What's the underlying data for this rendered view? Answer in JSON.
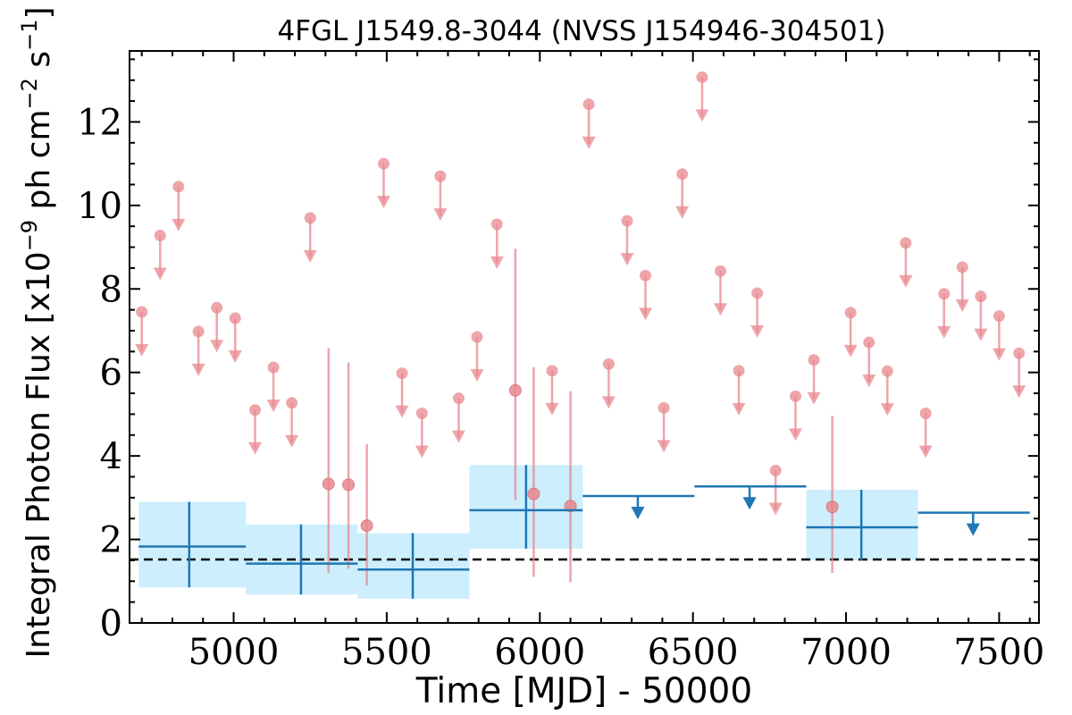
{
  "chart_data": {
    "type": "scatter",
    "title": "4FGL J1549.8-3044 (NVSS J154946-304501)",
    "xlabel": "Time [MJD] - 50000",
    "ylabel_main": "Integral Photon Flux [x10",
    "ylabel_exp1": "−9",
    "ylabel_mid": " ph cm",
    "ylabel_exp2": "−2",
    "ylabel_mid2": " s",
    "ylabel_exp3": "−1",
    "ylabel_end": "]",
    "xlim": [
      4660,
      7630
    ],
    "ylim": [
      0,
      13.7
    ],
    "xticks": [
      5000,
      5500,
      6000,
      6500,
      7000,
      7500
    ],
    "yticks": [
      0,
      2,
      4,
      6,
      8,
      10,
      12
    ],
    "xtick_labels": [
      "5000",
      "5500",
      "6000",
      "6500",
      "7000",
      "7500"
    ],
    "ytick_labels": [
      "0",
      "2",
      "4",
      "6",
      "8",
      "10",
      "12"
    ],
    "grid": false,
    "colors": {
      "short_bins": "#e8888f",
      "long_bins": "#1f77b4",
      "long_bin_band": "#cdeefc",
      "mean_line": "#000000"
    },
    "mean_flux": 1.52,
    "short_bins_upper_limits": [
      {
        "x": 4700,
        "y": 7.45
      },
      {
        "x": 4760,
        "y": 9.28
      },
      {
        "x": 4820,
        "y": 10.45
      },
      {
        "x": 4885,
        "y": 6.98
      },
      {
        "x": 4945,
        "y": 7.55
      },
      {
        "x": 5005,
        "y": 7.3
      },
      {
        "x": 5070,
        "y": 5.1
      },
      {
        "x": 5130,
        "y": 6.12
      },
      {
        "x": 5190,
        "y": 5.27
      },
      {
        "x": 5250,
        "y": 9.7
      },
      {
        "x": 5490,
        "y": 11.0
      },
      {
        "x": 5550,
        "y": 5.98
      },
      {
        "x": 5615,
        "y": 5.02
      },
      {
        "x": 5675,
        "y": 10.7
      },
      {
        "x": 5735,
        "y": 5.38
      },
      {
        "x": 5795,
        "y": 6.85
      },
      {
        "x": 5860,
        "y": 9.55
      },
      {
        "x": 6040,
        "y": 6.04
      },
      {
        "x": 6160,
        "y": 12.42
      },
      {
        "x": 6225,
        "y": 6.2
      },
      {
        "x": 6285,
        "y": 9.63
      },
      {
        "x": 6345,
        "y": 8.32
      },
      {
        "x": 6405,
        "y": 5.15
      },
      {
        "x": 6465,
        "y": 10.75
      },
      {
        "x": 6530,
        "y": 13.07
      },
      {
        "x": 6590,
        "y": 8.43
      },
      {
        "x": 6650,
        "y": 6.04
      },
      {
        "x": 6710,
        "y": 7.9
      },
      {
        "x": 6770,
        "y": 3.65
      },
      {
        "x": 6835,
        "y": 5.43
      },
      {
        "x": 6895,
        "y": 6.3
      },
      {
        "x": 7015,
        "y": 7.43
      },
      {
        "x": 7075,
        "y": 6.72
      },
      {
        "x": 7135,
        "y": 6.03
      },
      {
        "x": 7195,
        "y": 9.1
      },
      {
        "x": 7260,
        "y": 5.02
      },
      {
        "x": 7320,
        "y": 7.88
      },
      {
        "x": 7380,
        "y": 8.52
      },
      {
        "x": 7440,
        "y": 7.82
      },
      {
        "x": 7500,
        "y": 7.35
      },
      {
        "x": 7565,
        "y": 6.46
      }
    ],
    "short_bins_detections": [
      {
        "x": 5310,
        "y": 3.33,
        "ylo": 1.2,
        "yhi": 6.58
      },
      {
        "x": 5375,
        "y": 3.31,
        "ylo": 1.3,
        "yhi": 6.24
      },
      {
        "x": 5435,
        "y": 2.33,
        "ylo": 0.9,
        "yhi": 4.28
      },
      {
        "x": 5920,
        "y": 5.57,
        "ylo": 2.95,
        "yhi": 8.96
      },
      {
        "x": 5980,
        "y": 3.09,
        "ylo": 1.1,
        "yhi": 6.13
      },
      {
        "x": 6100,
        "y": 2.8,
        "ylo": 0.98,
        "yhi": 5.55
      },
      {
        "x": 6955,
        "y": 2.78,
        "ylo": 1.2,
        "yhi": 4.96
      }
    ],
    "long_bins_detections": [
      {
        "x": 4855,
        "x0": 4690,
        "x1": 5040,
        "y": 1.83,
        "ylo": 0.85,
        "yhi": 2.9
      },
      {
        "x": 5220,
        "x0": 5040,
        "x1": 5405,
        "y": 1.42,
        "ylo": 0.68,
        "yhi": 2.36
      },
      {
        "x": 5585,
        "x0": 5405,
        "x1": 5770,
        "y": 1.28,
        "ylo": 0.58,
        "yhi": 2.15
      },
      {
        "x": 5955,
        "x0": 5770,
        "x1": 6140,
        "y": 2.7,
        "ylo": 1.78,
        "yhi": 3.78
      },
      {
        "x": 7050,
        "x0": 6870,
        "x1": 7235,
        "y": 2.29,
        "ylo": 1.5,
        "yhi": 3.19
      }
    ],
    "long_bins_upper_limits": [
      {
        "x": 6320,
        "x0": 6140,
        "x1": 6505,
        "y": 3.04
      },
      {
        "x": 6685,
        "x0": 6505,
        "x1": 6870,
        "y": 3.27
      },
      {
        "x": 7415,
        "x0": 7235,
        "x1": 7600,
        "y": 2.64
      }
    ]
  }
}
